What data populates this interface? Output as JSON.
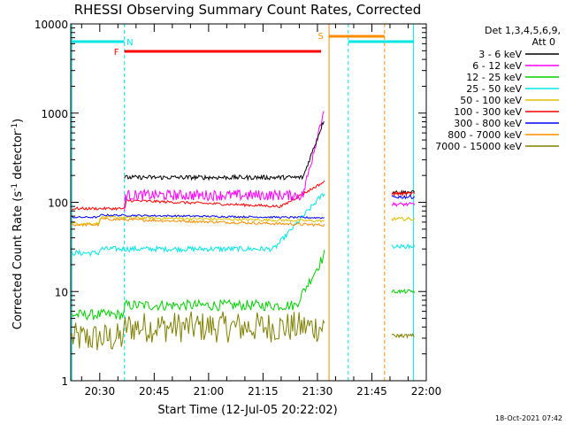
{
  "chart_data": {
    "type": "line",
    "title": "RHESSI Observing Summary Count Rates, Corrected",
    "xlabel": "Start Time (12-Jul-05 20:22:02)",
    "ylabel_main": "Corrected Count Rate (s",
    "ylabel_exp1": "-1",
    "ylabel_mid": " detector",
    "ylabel_exp2": "-1",
    "ylabel_end": ")",
    "x_axis": {
      "min_minutes": 22,
      "max_minutes": 120,
      "major_ticks": [
        30,
        45,
        60,
        75,
        90,
        105,
        120
      ],
      "tick_labels": [
        "20:30",
        "20:45",
        "21:00",
        "21:15",
        "21:30",
        "21:45",
        "22:00"
      ]
    },
    "y_axis": {
      "scale": "log",
      "range": [
        1,
        10000
      ],
      "tick_values": [
        1,
        10,
        100,
        1000,
        10000
      ],
      "tick_labels": [
        "1",
        "10",
        "100",
        "1000",
        "10000"
      ]
    },
    "detectors_label_line1": "Det 1,3,4,5,6,9,",
    "detectors_label_line2": "Att 0",
    "legend_position": "right",
    "series": [
      {
        "name": "3 - 6 keV",
        "color": "#000000"
      },
      {
        "name": "6 - 12 keV",
        "color": "#ff00ff"
      },
      {
        "name": "12 - 25 keV",
        "color": "#00d000"
      },
      {
        "name": "25 - 50 keV",
        "color": "#00e5e5"
      },
      {
        "name": "50 - 100 keV",
        "color": "#e0c000"
      },
      {
        "name": "100 - 300 keV",
        "color": "#ff0000"
      },
      {
        "name": "300 - 800 keV",
        "color": "#0000ff"
      },
      {
        "name": "800 - 7000 keV",
        "color": "#ff8c00"
      },
      {
        "name": "7000 - 15000 keV",
        "color": "#808000"
      }
    ],
    "flags": [
      {
        "label": "N",
        "color": "#00e5e5"
      },
      {
        "label": "F",
        "color": "#ff0000"
      },
      {
        "label": "S",
        "color": "#ff8c00"
      }
    ],
    "timestamp": "18-Oct-2021 07:42"
  }
}
